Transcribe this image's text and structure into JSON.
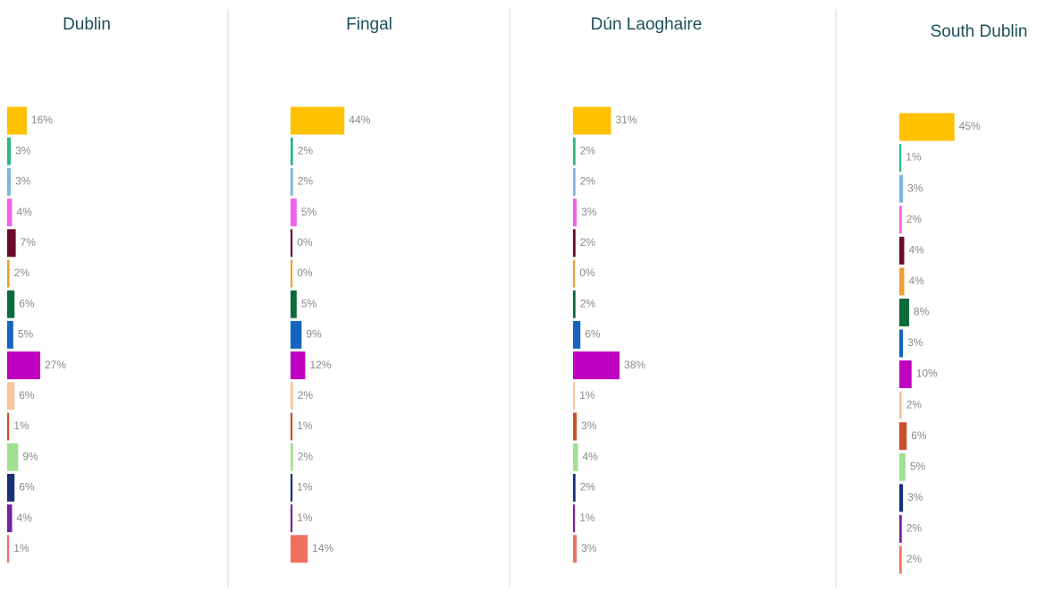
{
  "chart_data": [
    {
      "type": "bar",
      "title": "Dublin",
      "categories": [
        null,
        null,
        null,
        null,
        null,
        null,
        null,
        null,
        null,
        null,
        null,
        null,
        null,
        null,
        null
      ],
      "values": [
        16,
        3,
        3,
        4,
        7,
        2,
        6,
        5,
        27,
        6,
        1,
        9,
        6,
        4,
        1
      ],
      "value_labels": [
        "16%",
        "3%",
        "3%",
        "4%",
        "7%",
        "2%",
        "6%",
        "5%",
        "27%",
        "6%",
        "1%",
        "9%",
        "6%",
        "4%",
        "1%"
      ],
      "colors": [
        "#ffc000",
        "#2db87a",
        "#7fb3e0",
        "#f060f0",
        "#6b0a2e",
        "#f0a030",
        "#0b6b3a",
        "#1565c0",
        "#c000c0",
        "#f5c6a0",
        "#c8502a",
        "#a0e090",
        "#1a2f7a",
        "#7a1fa0",
        "#f07060"
      ]
    },
    {
      "type": "bar",
      "title": "Fingal",
      "categories": [
        null,
        null,
        null,
        null,
        null,
        null,
        null,
        null,
        null,
        null,
        null,
        null,
        null,
        null,
        null
      ],
      "values": [
        44,
        2,
        2,
        5,
        0,
        0,
        5,
        9,
        12,
        2,
        1,
        2,
        1,
        1,
        14
      ],
      "value_labels": [
        "44%",
        "2%",
        "2%",
        "5%",
        "0%",
        "0%",
        "5%",
        "9%",
        "12%",
        "2%",
        "1%",
        "2%",
        "1%",
        "1%",
        "14%"
      ],
      "colors": [
        "#ffc000",
        "#2db87a",
        "#7fb3e0",
        "#f060f0",
        "#6b0a2e",
        "#f0a030",
        "#0b6b3a",
        "#1565c0",
        "#c000c0",
        "#f5c6a0",
        "#c8502a",
        "#a0e090",
        "#1a2f7a",
        "#7a1fa0",
        "#f07060"
      ]
    },
    {
      "type": "bar",
      "title": "Dún Laoghaire",
      "categories": [
        null,
        null,
        null,
        null,
        null,
        null,
        null,
        null,
        null,
        null,
        null,
        null,
        null,
        null,
        null
      ],
      "values": [
        31,
        2,
        2,
        3,
        2,
        0,
        2,
        6,
        38,
        1,
        3,
        4,
        2,
        1,
        3
      ],
      "value_labels": [
        "31%",
        "2%",
        "2%",
        "3%",
        "2%",
        "0%",
        "2%",
        "6%",
        "38%",
        "1%",
        "3%",
        "4%",
        "2%",
        "1%",
        "3%"
      ],
      "colors": [
        "#ffc000",
        "#2db87a",
        "#7fb3e0",
        "#f060f0",
        "#6b0a2e",
        "#f0a030",
        "#0b6b3a",
        "#1565c0",
        "#c000c0",
        "#f5c6a0",
        "#c8502a",
        "#a0e090",
        "#1a2f7a",
        "#7a1fa0",
        "#f07060"
      ]
    },
    {
      "type": "bar",
      "title": "South Dublin",
      "categories": [
        null,
        null,
        null,
        null,
        null,
        null,
        null,
        null,
        null,
        null,
        null,
        null,
        null,
        null,
        null
      ],
      "values": [
        45,
        1,
        3,
        2,
        4,
        4,
        8,
        3,
        10,
        2,
        6,
        5,
        3,
        2,
        2
      ],
      "value_labels": [
        "45%",
        "1%",
        "3%",
        "2%",
        "4%",
        "4%",
        "8%",
        "3%",
        "10%",
        "2%",
        "6%",
        "5%",
        "3%",
        "2%",
        "2%"
      ],
      "colors": [
        "#ffc000",
        "#2db87a",
        "#7fb3e0",
        "#f060f0",
        "#6b0a2e",
        "#f0a030",
        "#0b6b3a",
        "#1565c0",
        "#c000c0",
        "#f5c6a0",
        "#c8502a",
        "#a0e090",
        "#1a2f7a",
        "#7a1fa0",
        "#f07060"
      ]
    }
  ]
}
